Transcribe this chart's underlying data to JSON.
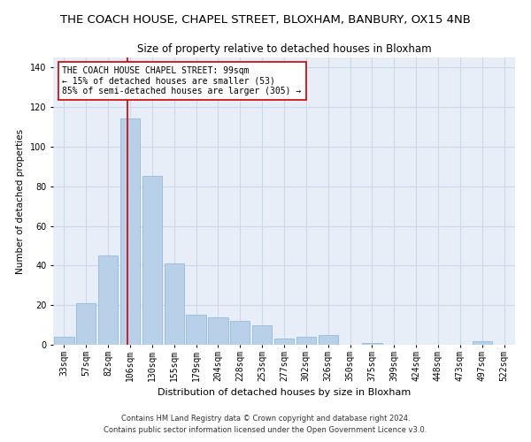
{
  "title1": "THE COACH HOUSE, CHAPEL STREET, BLOXHAM, BANBURY, OX15 4NB",
  "title2": "Size of property relative to detached houses in Bloxham",
  "xlabel": "Distribution of detached houses by size in Bloxham",
  "ylabel": "Number of detached properties",
  "categories": [
    "33sqm",
    "57sqm",
    "82sqm",
    "106sqm",
    "130sqm",
    "155sqm",
    "179sqm",
    "204sqm",
    "228sqm",
    "253sqm",
    "277sqm",
    "302sqm",
    "326sqm",
    "350sqm",
    "375sqm",
    "399sqm",
    "424sqm",
    "448sqm",
    "473sqm",
    "497sqm",
    "522sqm"
  ],
  "values": [
    4,
    21,
    45,
    114,
    85,
    41,
    15,
    14,
    12,
    10,
    3,
    4,
    5,
    0,
    1,
    0,
    0,
    0,
    0,
    2,
    0
  ],
  "bar_color": "#b8d0e8",
  "bar_edge_color": "#8ab4d4",
  "vline_color": "#cc0000",
  "vline_pos": 2.88,
  "annotation_text": "THE COACH HOUSE CHAPEL STREET: 99sqm\n← 15% of detached houses are smaller (53)\n85% of semi-detached houses are larger (305) →",
  "annotation_box_color": "#ffffff",
  "annotation_box_edge": "#cc0000",
  "ylim": [
    0,
    145
  ],
  "yticks": [
    0,
    20,
    40,
    60,
    80,
    100,
    120,
    140
  ],
  "grid_color": "#cdd8e8",
  "bg_color": "#e8eef8",
  "footnote1": "Contains HM Land Registry data © Crown copyright and database right 2024.",
  "footnote2": "Contains public sector information licensed under the Open Government Licence v3.0.",
  "title1_fontsize": 9.5,
  "title2_fontsize": 8.5,
  "xlabel_fontsize": 8,
  "ylabel_fontsize": 7.5,
  "tick_fontsize": 7,
  "annotation_fontsize": 7,
  "footnote_fontsize": 6
}
